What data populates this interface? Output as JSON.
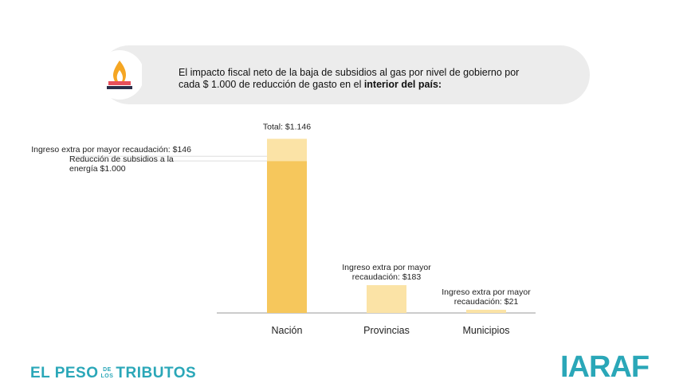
{
  "header": {
    "title": "El impacto fiscal neto de la baja de subsidios al gas por nivel de gobierno por cada $ 1.000 de reducción de gasto en el ",
    "title_bold": "interior del país:"
  },
  "chart_data": {
    "type": "bar",
    "stacked": true,
    "categories": [
      "Nación",
      "Provincias",
      "Municipios"
    ],
    "series": [
      {
        "color": "#f6c75c",
        "values": [
          1000,
          null,
          null
        ],
        "value_labels": [
          "Reducción de subsidios a la energía $1.000",
          null,
          null
        ]
      },
      {
        "color": "#fbe3a6",
        "values": [
          146,
          183,
          21
        ],
        "value_labels": [
          "Ingreso extra por mayor recaudación: $146",
          "Ingreso extra por mayor recaudación: $183",
          "Ingreso extra por mayor recaudación: $21"
        ]
      }
    ],
    "annotations": [
      {
        "text": "Total: $1.146",
        "value": 1146
      }
    ],
    "ylim": [
      0,
      1200
    ]
  },
  "footer": {
    "brand_left": "EL PESO",
    "brand_small_top": "DE",
    "brand_small_bottom": "LOS",
    "brand_right": "TRIBUTOS",
    "logo": "IARAF"
  }
}
